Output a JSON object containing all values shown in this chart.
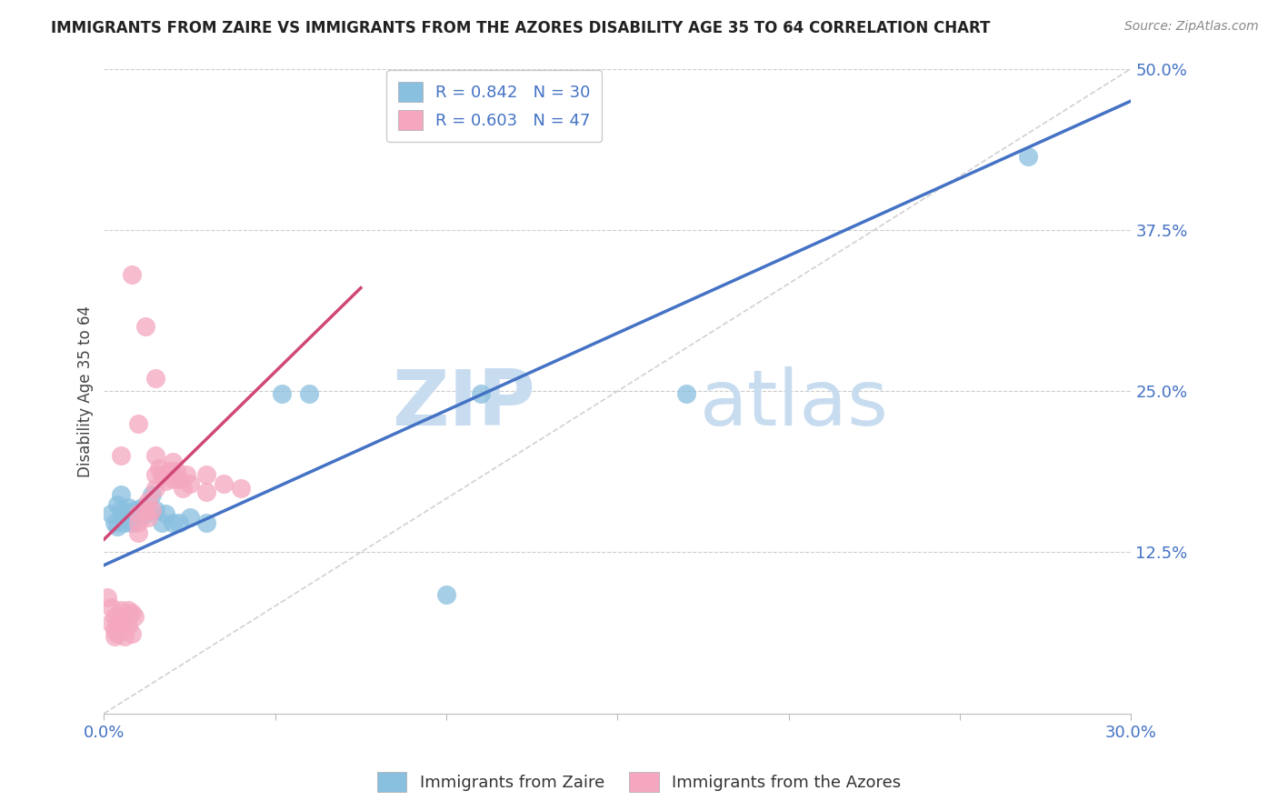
{
  "title": "IMMIGRANTS FROM ZAIRE VS IMMIGRANTS FROM THE AZORES DISABILITY AGE 35 TO 64 CORRELATION CHART",
  "source": "Source: ZipAtlas.com",
  "ylabel": "Disability Age 35 to 64",
  "xlim": [
    0.0,
    0.3
  ],
  "ylim": [
    0.0,
    0.5
  ],
  "blue_R": 0.842,
  "blue_N": 30,
  "pink_R": 0.603,
  "pink_N": 47,
  "blue_scatter_color": "#89bfdf",
  "pink_scatter_color": "#f4a7bf",
  "blue_line_color": "#4472c4",
  "pink_line_color": "#d04878",
  "diagonal_color": "#cccccc",
  "grid_color": "#cccccc",
  "axis_label_color": "#4472c4",
  "watermark_color": "#ddeaf8",
  "legend_label_blue": "Immigrants from Zaire",
  "legend_label_pink": "Immigrants from the Azores",
  "blue_scatter": [
    [
      0.002,
      0.155
    ],
    [
      0.003,
      0.148
    ],
    [
      0.004,
      0.162
    ],
    [
      0.004,
      0.145
    ],
    [
      0.005,
      0.158
    ],
    [
      0.005,
      0.17
    ],
    [
      0.006,
      0.155
    ],
    [
      0.006,
      0.148
    ],
    [
      0.007,
      0.16
    ],
    [
      0.007,
      0.153
    ],
    [
      0.008,
      0.155
    ],
    [
      0.008,
      0.148
    ],
    [
      0.009,
      0.158
    ],
    [
      0.01,
      0.152
    ],
    [
      0.011,
      0.16
    ],
    [
      0.012,
      0.155
    ],
    [
      0.014,
      0.17
    ],
    [
      0.015,
      0.158
    ],
    [
      0.017,
      0.148
    ],
    [
      0.018,
      0.155
    ],
    [
      0.02,
      0.148
    ],
    [
      0.022,
      0.148
    ],
    [
      0.025,
      0.152
    ],
    [
      0.03,
      0.148
    ],
    [
      0.052,
      0.248
    ],
    [
      0.06,
      0.248
    ],
    [
      0.11,
      0.248
    ],
    [
      0.17,
      0.248
    ],
    [
      0.27,
      0.432
    ],
    [
      0.1,
      0.092
    ]
  ],
  "pink_scatter": [
    [
      0.001,
      0.09
    ],
    [
      0.002,
      0.082
    ],
    [
      0.002,
      0.07
    ],
    [
      0.003,
      0.075
    ],
    [
      0.003,
      0.065
    ],
    [
      0.003,
      0.06
    ],
    [
      0.004,
      0.07
    ],
    [
      0.004,
      0.062
    ],
    [
      0.005,
      0.08
    ],
    [
      0.005,
      0.068
    ],
    [
      0.006,
      0.075
    ],
    [
      0.006,
      0.06
    ],
    [
      0.007,
      0.08
    ],
    [
      0.007,
      0.068
    ],
    [
      0.008,
      0.078
    ],
    [
      0.008,
      0.062
    ],
    [
      0.009,
      0.075
    ],
    [
      0.01,
      0.155
    ],
    [
      0.01,
      0.148
    ],
    [
      0.01,
      0.14
    ],
    [
      0.012,
      0.158
    ],
    [
      0.013,
      0.165
    ],
    [
      0.013,
      0.152
    ],
    [
      0.014,
      0.158
    ],
    [
      0.015,
      0.2
    ],
    [
      0.015,
      0.185
    ],
    [
      0.015,
      0.175
    ],
    [
      0.016,
      0.19
    ],
    [
      0.017,
      0.185
    ],
    [
      0.018,
      0.18
    ],
    [
      0.019,
      0.188
    ],
    [
      0.02,
      0.195
    ],
    [
      0.02,
      0.182
    ],
    [
      0.021,
      0.188
    ],
    [
      0.022,
      0.182
    ],
    [
      0.023,
      0.175
    ],
    [
      0.024,
      0.185
    ],
    [
      0.025,
      0.178
    ],
    [
      0.03,
      0.172
    ],
    [
      0.03,
      0.185
    ],
    [
      0.035,
      0.178
    ],
    [
      0.04,
      0.175
    ],
    [
      0.012,
      0.3
    ],
    [
      0.008,
      0.34
    ],
    [
      0.015,
      0.26
    ],
    [
      0.01,
      0.225
    ],
    [
      0.005,
      0.2
    ]
  ]
}
